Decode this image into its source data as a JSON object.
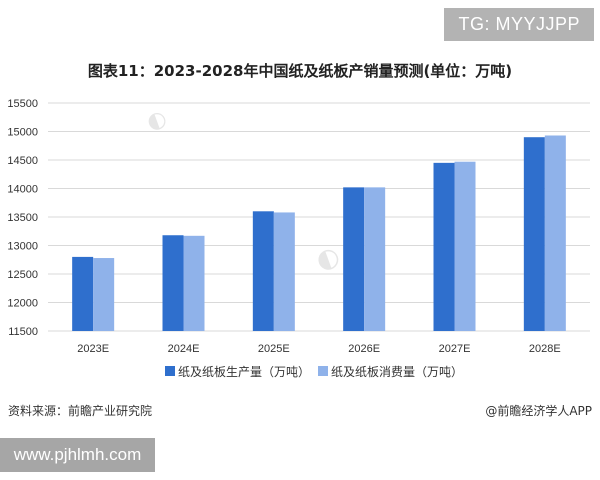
{
  "badge_top": "TG: MYYJJPP",
  "badge_bottom": "www.pjhlmh.com",
  "footer": {
    "source": "资料来源：前瞻产业研究院",
    "brand": "@前瞻经济学人APP"
  },
  "chart_data": {
    "type": "bar",
    "title": "图表11：2023-2028年中国纸及纸板产销量预测(单位：万吨)",
    "categories": [
      "2023E",
      "2024E",
      "2025E",
      "2026E",
      "2027E",
      "2028E"
    ],
    "series": [
      {
        "name": "纸及纸板生产量（万吨）",
        "values": [
          12800,
          13180,
          13600,
          14020,
          14450,
          14900
        ],
        "color": "#2f6fcd"
      },
      {
        "name": "纸及纸板消费量（万吨）",
        "values": [
          12780,
          13170,
          13580,
          14020,
          14470,
          14930
        ],
        "color": "#8fb2ea"
      }
    ],
    "ylim": [
      11500,
      15500
    ],
    "yticks": [
      11500,
      12000,
      12500,
      13000,
      13500,
      14000,
      14500,
      15000,
      15500
    ],
    "xlabel": "",
    "ylabel": "",
    "grid": true,
    "legend_position": "bottom"
  }
}
